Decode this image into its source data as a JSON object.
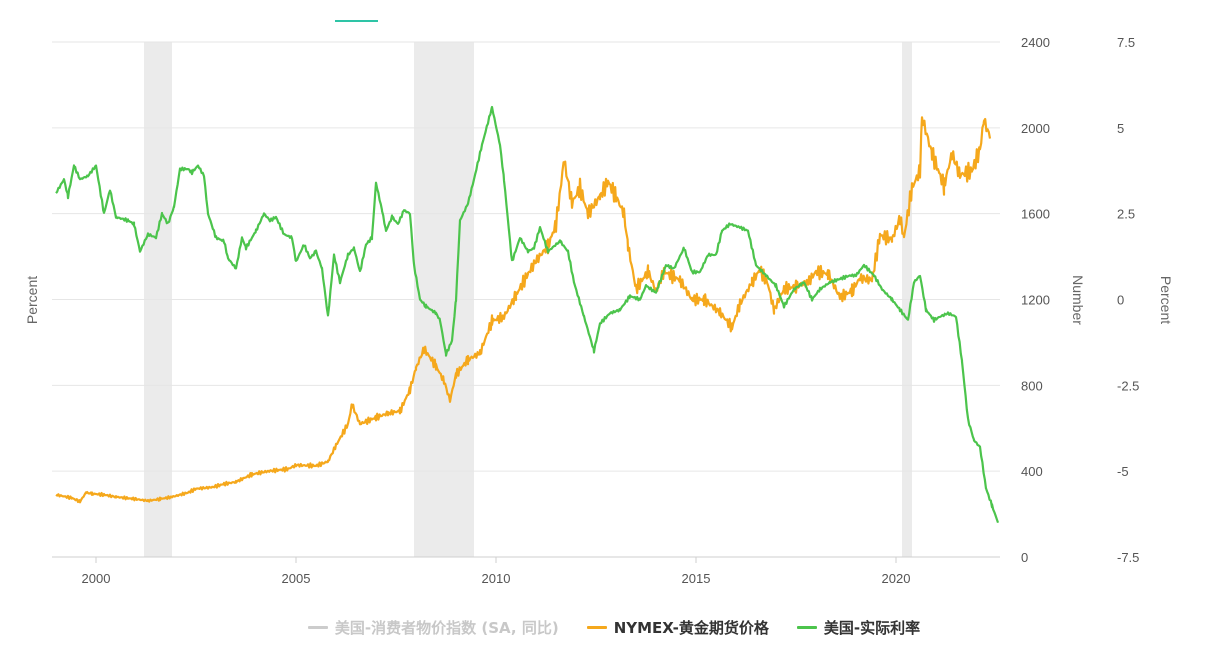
{
  "colors": {
    "cpi": "#cccccc",
    "gold": "#f5a81c",
    "real_rate": "#4cc44c",
    "recession_band": "#ebebeb",
    "grid": "#e6e6e6",
    "tab_underline": "#2ec4a6"
  },
  "legend": [
    {
      "label": "美国-消费者物价指数 (SA, 同比)",
      "color": "#cccccc",
      "hidden": true
    },
    {
      "label": "NYMEX-黄金期货价格",
      "color": "#f5a81c",
      "hidden": false
    },
    {
      "label": "美国-实际利率",
      "color": "#4cc44c",
      "hidden": false
    }
  ],
  "axes": {
    "left_title": "Percent",
    "right1_title": "Number",
    "right2_title": "Percent",
    "x_ticks": [
      "2000",
      "2005",
      "2010",
      "2015",
      "2020"
    ],
    "right1_ticks": [
      "0",
      "400",
      "800",
      "1200",
      "1600",
      "2000",
      "2400"
    ],
    "right2_ticks": [
      "-7.5",
      "-5",
      "-2.5",
      "0",
      "2.5",
      "5",
      "7.5"
    ]
  },
  "chart_data": {
    "type": "line",
    "x_range": [
      1998.9,
      2022.6
    ],
    "recession_periods": [
      [
        2001.2,
        2001.9
      ],
      [
        2007.95,
        2009.45
      ],
      [
        2020.15,
        2020.4
      ]
    ],
    "series": [
      {
        "name": "NYMEX-黄金期货价格",
        "axis": "right1",
        "ylim": [
          0,
          2400
        ],
        "points": [
          [
            1999.0,
            290
          ],
          [
            1999.4,
            275
          ],
          [
            1999.6,
            258
          ],
          [
            1999.75,
            300
          ],
          [
            1999.9,
            295
          ],
          [
            2000.2,
            290
          ],
          [
            2000.5,
            280
          ],
          [
            2000.9,
            272
          ],
          [
            2001.3,
            262
          ],
          [
            2001.6,
            270
          ],
          [
            2001.9,
            280
          ],
          [
            2002.3,
            300
          ],
          [
            2002.5,
            318
          ],
          [
            2002.9,
            325
          ],
          [
            2003.2,
            340
          ],
          [
            2003.5,
            350
          ],
          [
            2003.9,
            385
          ],
          [
            2004.3,
            400
          ],
          [
            2004.8,
            410
          ],
          [
            2005.0,
            428
          ],
          [
            2005.5,
            425
          ],
          [
            2005.8,
            445
          ],
          [
            2006.0,
            520
          ],
          [
            2006.3,
            620
          ],
          [
            2006.4,
            710
          ],
          [
            2006.6,
            620
          ],
          [
            2007.0,
            650
          ],
          [
            2007.3,
            670
          ],
          [
            2007.6,
            680
          ],
          [
            2007.85,
            780
          ],
          [
            2008.0,
            880
          ],
          [
            2008.2,
            970
          ],
          [
            2008.5,
            890
          ],
          [
            2008.7,
            820
          ],
          [
            2008.85,
            730
          ],
          [
            2009.0,
            850
          ],
          [
            2009.3,
            920
          ],
          [
            2009.6,
            950
          ],
          [
            2009.9,
            1100
          ],
          [
            2010.2,
            1120
          ],
          [
            2010.5,
            1220
          ],
          [
            2010.8,
            1320
          ],
          [
            2011.0,
            1380
          ],
          [
            2011.3,
            1450
          ],
          [
            2011.5,
            1550
          ],
          [
            2011.6,
            1700
          ],
          [
            2011.7,
            1850
          ],
          [
            2011.9,
            1650
          ],
          [
            2012.1,
            1720
          ],
          [
            2012.3,
            1600
          ],
          [
            2012.6,
            1680
          ],
          [
            2012.8,
            1750
          ],
          [
            2013.0,
            1680
          ],
          [
            2013.2,
            1600
          ],
          [
            2013.3,
            1450
          ],
          [
            2013.5,
            1250
          ],
          [
            2013.8,
            1330
          ],
          [
            2014.0,
            1240
          ],
          [
            2014.2,
            1330
          ],
          [
            2014.6,
            1290
          ],
          [
            2014.9,
            1200
          ],
          [
            2015.2,
            1200
          ],
          [
            2015.6,
            1140
          ],
          [
            2015.9,
            1070
          ],
          [
            2016.1,
            1180
          ],
          [
            2016.4,
            1280
          ],
          [
            2016.6,
            1340
          ],
          [
            2016.8,
            1270
          ],
          [
            2016.95,
            1150
          ],
          [
            2017.2,
            1250
          ],
          [
            2017.5,
            1260
          ],
          [
            2017.8,
            1280
          ],
          [
            2018.0,
            1330
          ],
          [
            2018.3,
            1320
          ],
          [
            2018.6,
            1210
          ],
          [
            2018.9,
            1240
          ],
          [
            2019.1,
            1300
          ],
          [
            2019.4,
            1290
          ],
          [
            2019.6,
            1500
          ],
          [
            2019.9,
            1480
          ],
          [
            2020.1,
            1580
          ],
          [
            2020.2,
            1490
          ],
          [
            2020.4,
            1720
          ],
          [
            2020.6,
            1800
          ],
          [
            2020.65,
            2050
          ],
          [
            2020.9,
            1880
          ],
          [
            2021.2,
            1730
          ],
          [
            2021.4,
            1880
          ],
          [
            2021.6,
            1780
          ],
          [
            2021.9,
            1800
          ],
          [
            2022.1,
            1900
          ],
          [
            2022.2,
            2040
          ],
          [
            2022.35,
            1950
          ]
        ]
      },
      {
        "name": "美国-实际利率",
        "axis": "right2",
        "ylim": [
          -7.5,
          7.5
        ],
        "points": [
          [
            1999.0,
            3.1
          ],
          [
            1999.2,
            3.5
          ],
          [
            1999.3,
            3.0
          ],
          [
            1999.45,
            3.9
          ],
          [
            1999.6,
            3.5
          ],
          [
            1999.8,
            3.6
          ],
          [
            2000.0,
            3.9
          ],
          [
            2000.2,
            2.5
          ],
          [
            2000.35,
            3.2
          ],
          [
            2000.5,
            2.4
          ],
          [
            2000.8,
            2.3
          ],
          [
            2000.95,
            2.2
          ],
          [
            2001.1,
            1.4
          ],
          [
            2001.3,
            1.9
          ],
          [
            2001.5,
            1.8
          ],
          [
            2001.65,
            2.5
          ],
          [
            2001.8,
            2.2
          ],
          [
            2001.95,
            2.7
          ],
          [
            2002.1,
            3.8
          ],
          [
            2002.3,
            3.8
          ],
          [
            2002.4,
            3.7
          ],
          [
            2002.55,
            3.9
          ],
          [
            2002.7,
            3.6
          ],
          [
            2002.8,
            2.5
          ],
          [
            2003.0,
            1.8
          ],
          [
            2003.2,
            1.7
          ],
          [
            2003.3,
            1.2
          ],
          [
            2003.5,
            0.9
          ],
          [
            2003.65,
            1.8
          ],
          [
            2003.75,
            1.5
          ],
          [
            2004.0,
            2.0
          ],
          [
            2004.2,
            2.5
          ],
          [
            2004.35,
            2.3
          ],
          [
            2004.5,
            2.4
          ],
          [
            2004.7,
            1.9
          ],
          [
            2004.9,
            1.8
          ],
          [
            2005.0,
            1.1
          ],
          [
            2005.2,
            1.6
          ],
          [
            2005.35,
            1.2
          ],
          [
            2005.5,
            1.4
          ],
          [
            2005.65,
            0.9
          ],
          [
            2005.8,
            -0.5
          ],
          [
            2005.95,
            1.3
          ],
          [
            2006.1,
            0.5
          ],
          [
            2006.3,
            1.3
          ],
          [
            2006.45,
            1.5
          ],
          [
            2006.6,
            0.8
          ],
          [
            2006.75,
            1.6
          ],
          [
            2006.9,
            1.8
          ],
          [
            2007.0,
            3.4
          ],
          [
            2007.15,
            2.6
          ],
          [
            2007.25,
            2.0
          ],
          [
            2007.4,
            2.4
          ],
          [
            2007.55,
            2.2
          ],
          [
            2007.7,
            2.6
          ],
          [
            2007.85,
            2.5
          ],
          [
            2007.95,
            1.0
          ],
          [
            2008.1,
            0.0
          ],
          [
            2008.25,
            -0.2
          ],
          [
            2008.5,
            -0.4
          ],
          [
            2008.6,
            -0.6
          ],
          [
            2008.75,
            -1.6
          ],
          [
            2008.9,
            -1.2
          ],
          [
            2009.0,
            0.0
          ],
          [
            2009.1,
            2.3
          ],
          [
            2009.3,
            2.8
          ],
          [
            2009.45,
            3.5
          ],
          [
            2009.65,
            4.5
          ],
          [
            2009.9,
            5.6
          ],
          [
            2010.1,
            4.5
          ],
          [
            2010.2,
            3.5
          ],
          [
            2010.4,
            1.1
          ],
          [
            2010.6,
            1.8
          ],
          [
            2010.8,
            1.4
          ],
          [
            2010.95,
            1.5
          ],
          [
            2011.1,
            2.1
          ],
          [
            2011.3,
            1.4
          ],
          [
            2011.6,
            1.7
          ],
          [
            2011.8,
            1.4
          ],
          [
            2011.95,
            0.5
          ],
          [
            2012.2,
            -0.5
          ],
          [
            2012.45,
            -1.5
          ],
          [
            2012.6,
            -0.7
          ],
          [
            2012.85,
            -0.4
          ],
          [
            2013.1,
            -0.3
          ],
          [
            2013.35,
            0.1
          ],
          [
            2013.6,
            0.0
          ],
          [
            2013.75,
            0.4
          ],
          [
            2014.0,
            0.2
          ],
          [
            2014.25,
            1.0
          ],
          [
            2014.45,
            0.9
          ],
          [
            2014.7,
            1.5
          ],
          [
            2014.9,
            0.8
          ],
          [
            2015.1,
            0.8
          ],
          [
            2015.3,
            1.3
          ],
          [
            2015.5,
            1.3
          ],
          [
            2015.65,
            2.0
          ],
          [
            2015.85,
            2.2
          ],
          [
            2016.1,
            2.1
          ],
          [
            2016.3,
            2.0
          ],
          [
            2016.5,
            1.0
          ],
          [
            2016.75,
            0.7
          ],
          [
            2017.0,
            0.4
          ],
          [
            2017.2,
            -0.2
          ],
          [
            2017.45,
            0.3
          ],
          [
            2017.7,
            0.5
          ],
          [
            2017.9,
            0.0
          ],
          [
            2018.1,
            0.3
          ],
          [
            2018.35,
            0.5
          ],
          [
            2018.6,
            0.6
          ],
          [
            2018.85,
            0.7
          ],
          [
            2019.0,
            0.7
          ],
          [
            2019.2,
            1.0
          ],
          [
            2019.45,
            0.7
          ],
          [
            2019.65,
            0.3
          ],
          [
            2019.9,
            0.0
          ],
          [
            2020.1,
            -0.3
          ],
          [
            2020.3,
            -0.6
          ],
          [
            2020.45,
            0.5
          ],
          [
            2020.6,
            0.7
          ],
          [
            2020.75,
            -0.3
          ],
          [
            2020.95,
            -0.6
          ],
          [
            2021.1,
            -0.5
          ],
          [
            2021.3,
            -0.4
          ],
          [
            2021.5,
            -0.5
          ],
          [
            2021.65,
            -1.8
          ],
          [
            2021.8,
            -3.5
          ],
          [
            2021.95,
            -4.1
          ],
          [
            2022.1,
            -4.3
          ],
          [
            2022.25,
            -5.5
          ],
          [
            2022.4,
            -6.0
          ],
          [
            2022.55,
            -6.5
          ]
        ]
      }
    ]
  }
}
